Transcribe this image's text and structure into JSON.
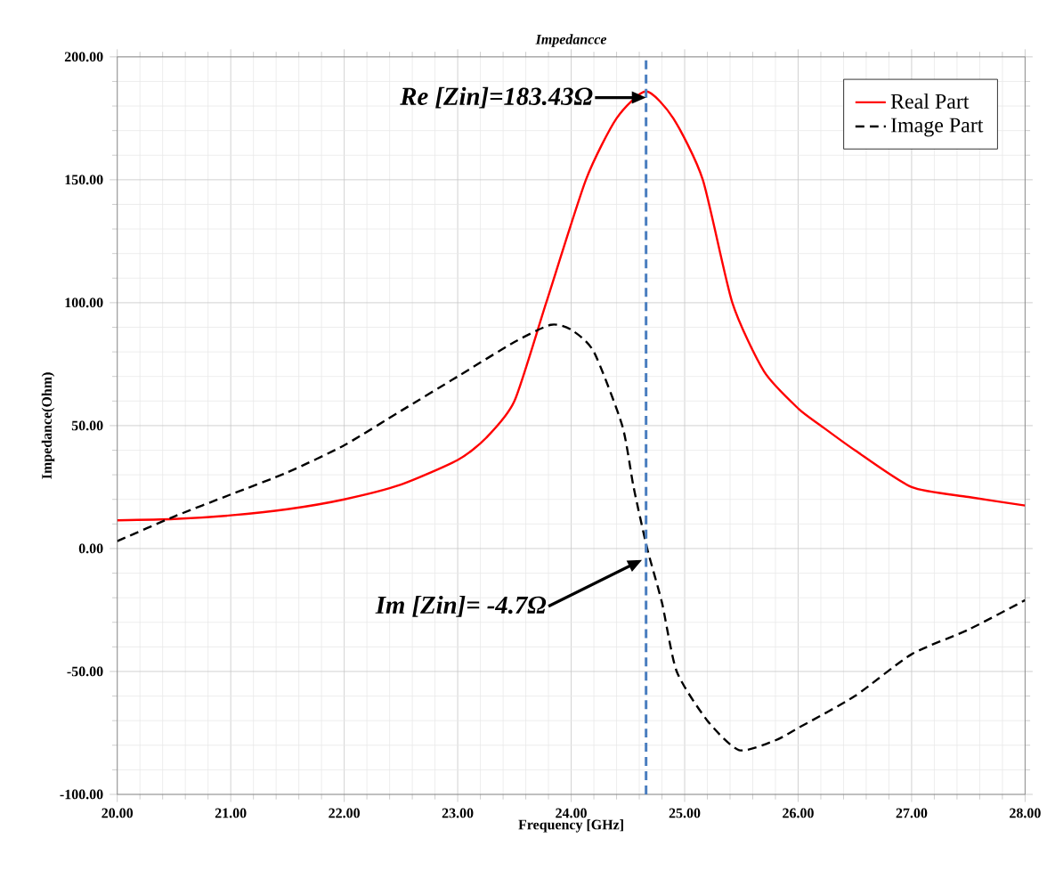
{
  "chart_data": {
    "type": "line",
    "title": "Impedancce",
    "xlabel": "Frequency [GHz]",
    "ylabel": "Impedance(Ohm)",
    "xlim": [
      20,
      28
    ],
    "ylim": [
      -100,
      200
    ],
    "xticks": [
      {
        "value": 20,
        "label": "20.00"
      },
      {
        "value": 21,
        "label": "21.00"
      },
      {
        "value": 22,
        "label": "22.00"
      },
      {
        "value": 23,
        "label": "23.00"
      },
      {
        "value": 24,
        "label": "24.00"
      },
      {
        "value": 25,
        "label": "25.00"
      },
      {
        "value": 26,
        "label": "26.00"
      },
      {
        "value": 27,
        "label": "27.00"
      },
      {
        "value": 28,
        "label": "28.00"
      }
    ],
    "yticks": [
      {
        "value": -100,
        "label": "-100.00"
      },
      {
        "value": -50,
        "label": "-50.00"
      },
      {
        "value": 0,
        "label": "0.00"
      },
      {
        "value": 50,
        "label": "50.00"
      },
      {
        "value": 100,
        "label": "100.00"
      },
      {
        "value": 150,
        "label": "150.00"
      },
      {
        "value": 200,
        "label": "200.00"
      }
    ],
    "grid": true,
    "legend": "top right",
    "marker": "none",
    "series": [
      {
        "name": "Real Part",
        "color": "#ff0000",
        "line_style": "solid",
        "x": [
          20,
          20.5,
          21,
          21.5,
          22,
          22.5,
          23,
          23.25,
          23.5,
          23.78,
          24.13,
          24.4,
          24.66,
          24.9,
          25.16,
          25.42,
          25.7,
          26,
          26.2,
          26.5,
          27,
          27.5,
          28
        ],
        "values": [
          11.5,
          12,
          13.5,
          16,
          20,
          26,
          36,
          45,
          60,
          100,
          150,
          175,
          186,
          175,
          150,
          100,
          72,
          57,
          50,
          40,
          25,
          21,
          17.5
        ]
      },
      {
        "name": "Image Part",
        "color": "#000000",
        "line_style": "dashed",
        "x": [
          20,
          20.5,
          21,
          21.5,
          22,
          22.5,
          23,
          23.5,
          23.82,
          24,
          24.2,
          24.45,
          24.55,
          24.67,
          24.8,
          24.93,
          25.2,
          25.48,
          25.8,
          26,
          26.5,
          27,
          27.5,
          28
        ],
        "values": [
          3,
          13,
          22,
          31,
          42,
          56,
          70,
          84,
          91,
          89,
          80,
          50,
          25,
          0,
          -22,
          -50,
          -70,
          -82,
          -78,
          -73,
          -60,
          -43,
          -33,
          -21
        ]
      }
    ],
    "ref_lines": [
      {
        "axis": "x",
        "value": 24.66,
        "color": "#4a7ebf",
        "line_style": "dashed"
      }
    ],
    "annotations": [
      {
        "text": "Re [Zin]=183.43Ω",
        "x": 24.66,
        "y": 183.43
      },
      "Im [Zin]= -4.7Ω"
    ]
  }
}
